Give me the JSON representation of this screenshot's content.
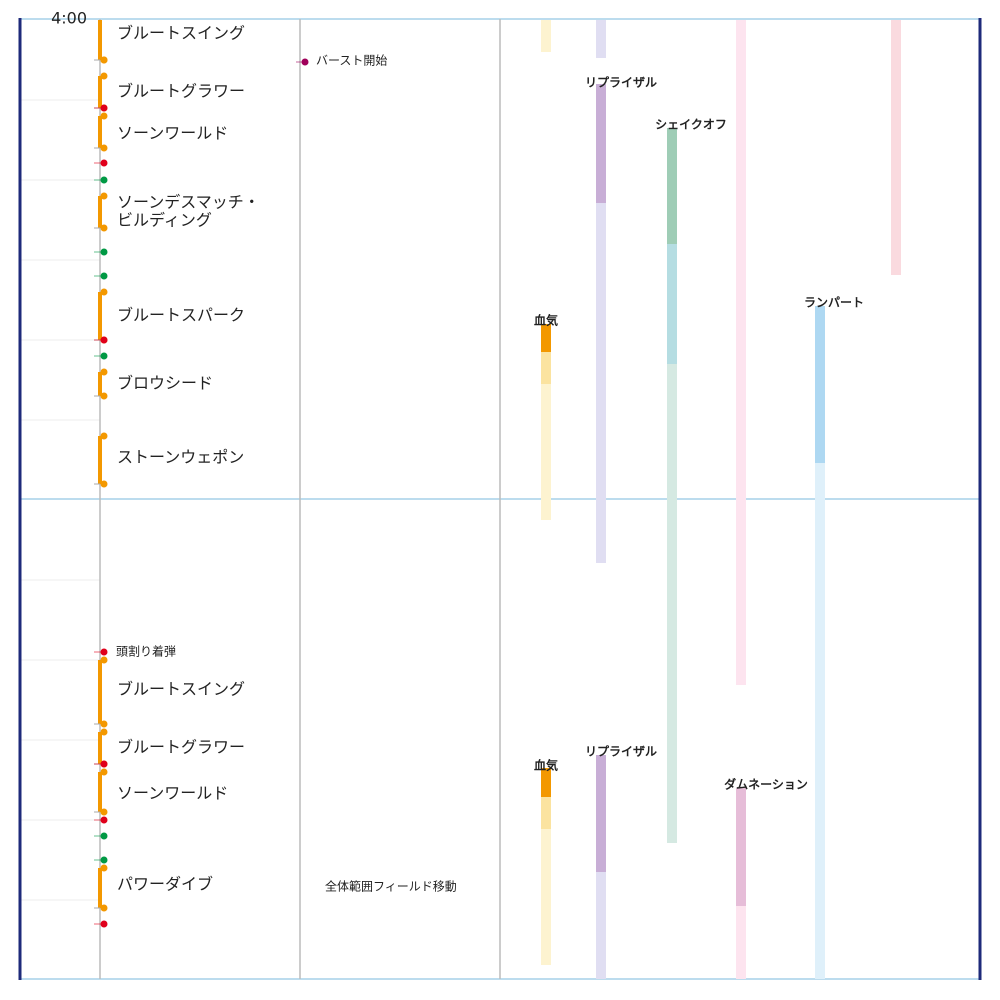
{
  "time_label": "4:00",
  "skills": {
    "top": [
      "ブルートスイング",
      "ブルートグラワー",
      "ソーンワールド",
      {
        "lines": [
          "ソーンデスマッチ・",
          "ビルディング"
        ]
      },
      "ブルートスパーク",
      "ブロウシード",
      "ストーンウェポン"
    ],
    "bottom": [
      "ブルートスイング",
      "ブルートグラワー",
      "ソーンワールド",
      "パワーダイブ"
    ]
  },
  "notes": [
    "バースト開始",
    "頭割り着弾",
    "全体範囲フィールド移動"
  ],
  "buffs": [
    "リプライザル",
    "シェイクオフ",
    "ランパート",
    "血気",
    "血気",
    "リプライザル",
    "ダムネーション"
  ]
}
